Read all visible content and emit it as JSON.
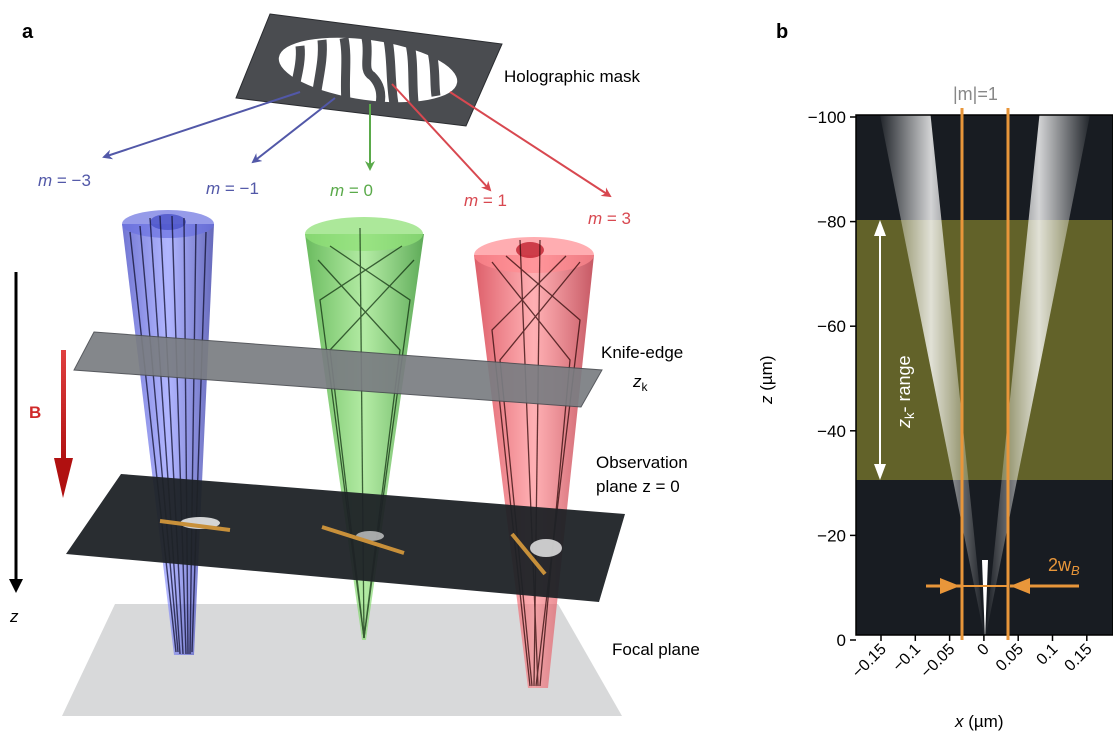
{
  "panel_a": {
    "label": "a",
    "mask_label": "Holographic mask",
    "orders": [
      {
        "m": "−3",
        "color": "#5258a8"
      },
      {
        "m": "−1",
        "color": "#5258a8"
      },
      {
        "m": "0",
        "color": "#5aaa4a"
      },
      {
        "m": "1",
        "color": "#d84850"
      },
      {
        "m": "3",
        "color": "#d84850"
      }
    ],
    "m_symbol": "m",
    "eq": " = ",
    "knife_edge_label": "Knife-edge",
    "knife_edge_sub_z": "z",
    "knife_edge_sub_k": "k",
    "observation_label_1": "Observation",
    "observation_label_2": "plane z = 0",
    "focal_label": "Focal plane",
    "field_label": "B",
    "z_axis_label": "z",
    "colors": {
      "blue": "#3c44c8",
      "green": "#48b838",
      "red": "#e03040",
      "slab": "#2a2e33",
      "knife": "#6a6d70",
      "orange": "#c8903a",
      "field": "#c02020"
    }
  },
  "panel_b": {
    "label": "b",
    "m_label": "|m|=1",
    "y_axis_label": "z (µm)",
    "x_axis_label": "x (µm)",
    "y_ticks": [
      "−100",
      "−80",
      "−60",
      "−40",
      "−20",
      "0"
    ],
    "x_ticks": [
      "−0.15",
      "−0.1",
      "−0.05",
      "0",
      "0.05",
      "0.1",
      "0.15"
    ],
    "zk_range_label": "z",
    "zk_range_sub": "k",
    "zk_range_suffix": "- range",
    "beam_label_prefix": "2w",
    "beam_label_sub": "B",
    "colors": {
      "orange": "#e8963a",
      "highlight": "#7a7a30"
    }
  }
}
